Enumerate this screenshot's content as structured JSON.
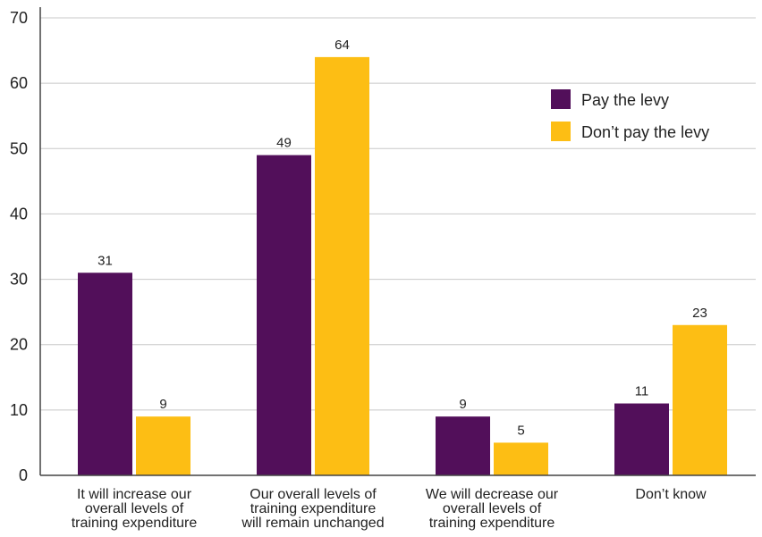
{
  "chart_data": {
    "type": "bar",
    "categories": [
      [
        "It will increase our",
        "overall levels of",
        "training expenditure"
      ],
      [
        "Our overall levels of",
        "training expenditure",
        "will remain unchanged"
      ],
      [
        "We will decrease our",
        "overall levels of",
        "training expenditure"
      ],
      [
        "Don’t know"
      ]
    ],
    "series": [
      {
        "name": "Pay the levy",
        "color": "#520f5a",
        "values": [
          31,
          49,
          9,
          11
        ]
      },
      {
        "name": "Don’t pay the levy",
        "color": "#fdbe14",
        "values": [
          9,
          64,
          5,
          23
        ]
      }
    ],
    "yticks": [
      "0",
      "10",
      "20",
      "30",
      "40",
      "50",
      "60",
      "70"
    ],
    "ylim": [
      0,
      70
    ],
    "grid": true,
    "legend_position": "top-right",
    "grid_color": "#c8c8c8",
    "axis_color": "#444444"
  }
}
